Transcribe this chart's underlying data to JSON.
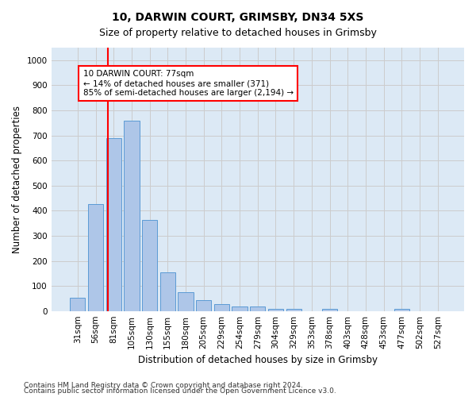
{
  "title1": "10, DARWIN COURT, GRIMSBY, DN34 5XS",
  "title2": "Size of property relative to detached houses in Grimsby",
  "xlabel": "Distribution of detached houses by size in Grimsby",
  "ylabel": "Number of detached properties",
  "footer1": "Contains HM Land Registry data © Crown copyright and database right 2024.",
  "footer2": "Contains public sector information licensed under the Open Government Licence v3.0.",
  "categories": [
    "31sqm",
    "56sqm",
    "81sqm",
    "105sqm",
    "130sqm",
    "155sqm",
    "180sqm",
    "205sqm",
    "229sqm",
    "254sqm",
    "279sqm",
    "304sqm",
    "329sqm",
    "353sqm",
    "378sqm",
    "403sqm",
    "428sqm",
    "453sqm",
    "477sqm",
    "502sqm",
    "527sqm"
  ],
  "values": [
    52,
    425,
    690,
    760,
    362,
    155,
    75,
    42,
    27,
    18,
    18,
    10,
    10,
    0,
    10,
    0,
    0,
    0,
    10,
    0,
    0
  ],
  "bar_color": "#aec6e8",
  "bar_edge_color": "#5b9bd5",
  "vline_x": 1.67,
  "vline_color": "red",
  "annotation_text": "10 DARWIN COURT: 77sqm\n← 14% of detached houses are smaller (371)\n85% of semi-detached houses are larger (2,194) →",
  "annotation_box_color": "white",
  "annotation_box_edge": "red",
  "ylim": [
    0,
    1050
  ],
  "yticks": [
    0,
    100,
    200,
    300,
    400,
    500,
    600,
    700,
    800,
    900,
    1000
  ],
  "grid_color": "#cccccc",
  "bg_color": "#dce9f5",
  "title1_fontsize": 10,
  "title2_fontsize": 9,
  "xlabel_fontsize": 8.5,
  "ylabel_fontsize": 8.5,
  "tick_fontsize": 7.5,
  "footer_fontsize": 6.5,
  "annot_fontsize": 7.5
}
